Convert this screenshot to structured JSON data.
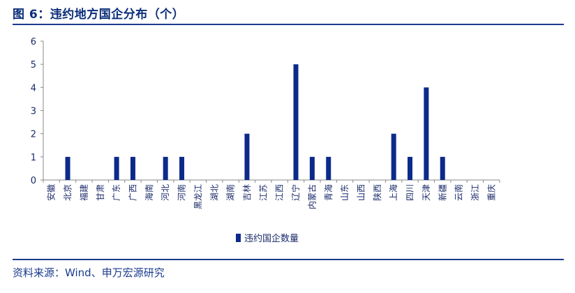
{
  "header": {
    "title": "图 6：违约地方国企分布（个）"
  },
  "footer": {
    "source": "资料来源：Wind、申万宏源研究"
  },
  "chart_data": {
    "type": "bar",
    "title": "",
    "xlabel": "",
    "ylabel": "",
    "ylim": [
      0,
      6
    ],
    "yticks": [
      0,
      1,
      2,
      3,
      4,
      5,
      6
    ],
    "grid": false,
    "legend_position": "bottom",
    "categories": [
      "安徽",
      "北京",
      "福建",
      "甘肃",
      "广东",
      "广西",
      "海南",
      "河北",
      "河南",
      "黑龙江",
      "湖北",
      "湖南",
      "吉林",
      "江苏",
      "江西",
      "辽宁",
      "内蒙古",
      "青海",
      "山东",
      "山西",
      "陕西",
      "上海",
      "四川",
      "天津",
      "新疆",
      "云南",
      "浙江",
      "重庆"
    ],
    "series": [
      {
        "name": "违约国企数量",
        "color": "#0b2a8a",
        "values": [
          0,
          1,
          0,
          0,
          1,
          1,
          0,
          1,
          1,
          0,
          0,
          0,
          2,
          0,
          0,
          5,
          1,
          1,
          0,
          0,
          0,
          2,
          1,
          4,
          1,
          0,
          0,
          0
        ]
      }
    ]
  }
}
